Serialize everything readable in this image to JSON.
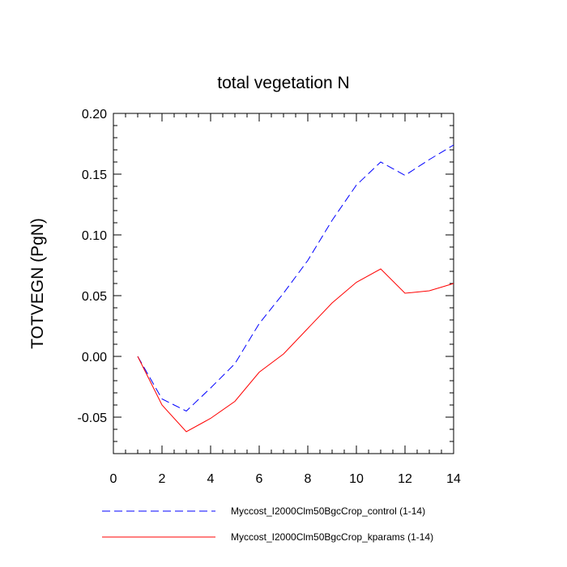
{
  "chart_data": {
    "type": "line",
    "title": "total vegetation N",
    "xlabel": "",
    "ylabel": "TOTVEGN  (PgN)",
    "xlim": [
      0,
      14
    ],
    "ylim": [
      -0.08,
      0.2
    ],
    "x_ticks": [
      0,
      2,
      4,
      6,
      8,
      10,
      12,
      14
    ],
    "x_tick_labels": [
      "0",
      "2",
      "4",
      "6",
      "8",
      "10",
      "12",
      "14"
    ],
    "y_ticks": [
      -0.05,
      0.0,
      0.05,
      0.1,
      0.15,
      0.2
    ],
    "y_tick_labels": [
      "-0.05",
      "0.00",
      "0.05",
      "0.10",
      "0.15",
      "0.20"
    ],
    "grid": false,
    "legend_position": "bottom",
    "x": [
      1,
      2,
      3,
      4,
      5,
      6,
      7,
      8,
      9,
      10,
      11,
      12,
      13,
      14
    ],
    "series": [
      {
        "name": "Myccost_I2000Clm50BgcCrop_control (1-14)",
        "color": "#0000ff",
        "dash": "dashed",
        "values": [
          0.0,
          -0.035,
          -0.045,
          -0.026,
          -0.006,
          0.027,
          0.052,
          0.079,
          0.112,
          0.141,
          0.16,
          0.149,
          0.162,
          0.174
        ]
      },
      {
        "name": "Myccost_I2000Clm50BgcCrop_kparams (1-14)",
        "color": "#ff0000",
        "dash": "solid",
        "values": [
          0.0,
          -0.04,
          -0.062,
          -0.051,
          -0.037,
          -0.013,
          0.002,
          0.023,
          0.044,
          0.061,
          0.072,
          0.052,
          0.054,
          0.06
        ]
      }
    ]
  }
}
